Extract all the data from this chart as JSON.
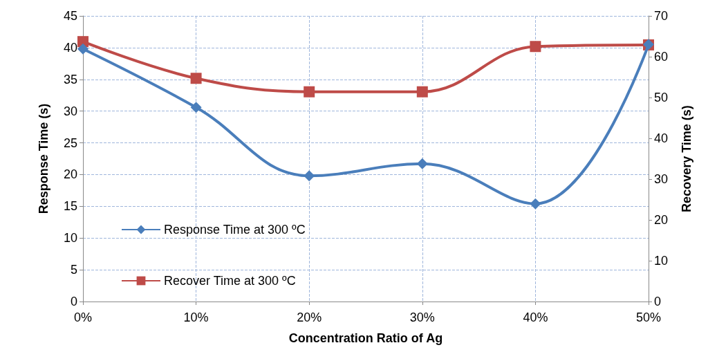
{
  "chart_data": {
    "type": "line",
    "xlabel": "Concentration Ratio of Ag",
    "ylabel": "Response Time (s)",
    "y2label": "Recovery Time (s)",
    "categories": [
      "0%",
      "10%",
      "20%",
      "30%",
      "40%",
      "50%"
    ],
    "ylim": [
      0,
      45
    ],
    "yticks": [
      0,
      5,
      10,
      15,
      20,
      25,
      30,
      35,
      40,
      45
    ],
    "y2lim": [
      0,
      70
    ],
    "y2ticks": [
      0,
      10,
      20,
      30,
      40,
      50,
      60,
      70
    ],
    "grid": true,
    "legend": "bottom left",
    "series": [
      {
        "name": "Response Time at 300 ºC",
        "color": "#4a7ebb",
        "marker": "diamond",
        "values": [
          39.8,
          30.6,
          19.8,
          21.7,
          15.4,
          40.5
        ]
      },
      {
        "name": "Recover Time at 300 ºC",
        "color": "#be4b48",
        "marker": "square",
        "axis": "y2",
        "values": [
          63.7,
          54.7,
          51.4,
          51.4,
          62.5,
          62.9
        ]
      }
    ]
  }
}
